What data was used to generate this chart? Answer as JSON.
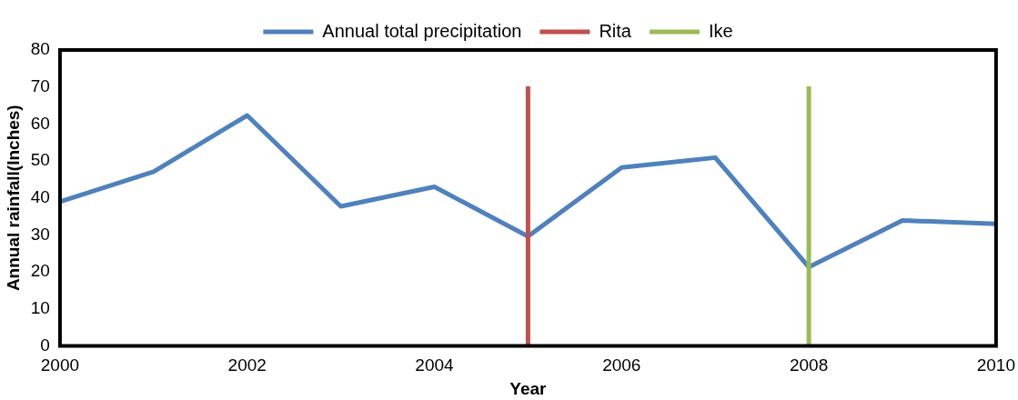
{
  "chart_data": {
    "type": "line",
    "xlabel": "Year",
    "ylabel": "Annual rainfall(Inches)",
    "x": [
      2000,
      2001,
      2002,
      2003,
      2004,
      2005,
      2006,
      2007,
      2008,
      2009,
      2010
    ],
    "series": [
      {
        "name": "Annual total precipitation",
        "color": "#4f81bd",
        "values": [
          39.0,
          47.1,
          62.3,
          37.7,
          43.0,
          29.6,
          48.2,
          50.9,
          21.3,
          33.9,
          33.0
        ]
      }
    ],
    "ref_lines": [
      {
        "axis": "x",
        "value": 2005,
        "label": "Rita",
        "color": "#c0504d"
      },
      {
        "axis": "x",
        "value": 2008,
        "label": "Ike",
        "color": "#9bbb59"
      }
    ],
    "xlim": [
      2000,
      2010
    ],
    "xticks": [
      2000,
      2002,
      2004,
      2006,
      2008,
      2010
    ],
    "ylim": [
      0,
      80
    ],
    "yticks": [
      0,
      10,
      20,
      30,
      40,
      50,
      60,
      70,
      80
    ],
    "grid": false,
    "legend": "top",
    "marker": "none",
    "line_style": "solid"
  }
}
